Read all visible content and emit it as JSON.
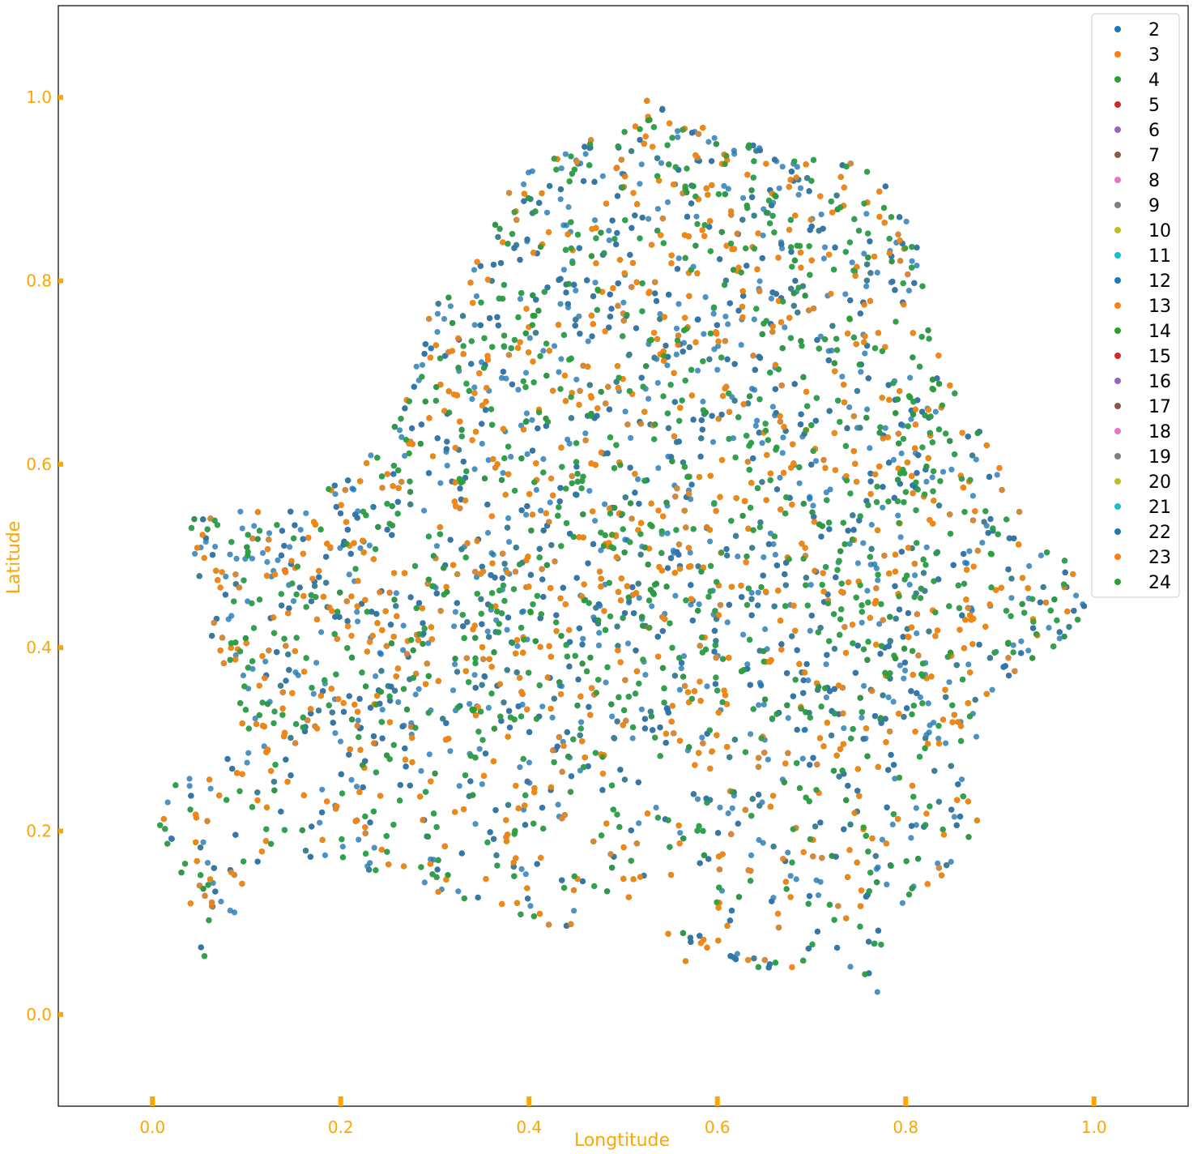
{
  "chart_data": {
    "type": "scatter",
    "title": "",
    "xlabel": "Longtitude",
    "ylabel": "Latitude",
    "xlim": [
      -0.1,
      1.1
    ],
    "ylim": [
      -0.1,
      1.1
    ],
    "xticks": [
      0.0,
      0.2,
      0.4,
      0.6,
      0.8,
      1.0
    ],
    "xtick_labels": [
      "0.0",
      "0.2",
      "0.4",
      "0.6",
      "0.8",
      "1.0"
    ],
    "yticks": [
      0.0,
      0.2,
      0.4,
      0.6,
      0.8,
      1.0
    ],
    "ytick_labels": [
      "0.0",
      "0.2",
      "0.4",
      "0.6",
      "0.8",
      "1.0"
    ],
    "grid": false,
    "legend_position": "top-right",
    "axis_color": "#ffa500",
    "series": [
      {
        "name": "2",
        "color": "#1f77b4"
      },
      {
        "name": "3",
        "color": "#ff7f0e"
      },
      {
        "name": "4",
        "color": "#2ca02c"
      },
      {
        "name": "5",
        "color": "#d62728"
      },
      {
        "name": "6",
        "color": "#9467bd"
      },
      {
        "name": "7",
        "color": "#8c564b"
      },
      {
        "name": "8",
        "color": "#e377c2"
      },
      {
        "name": "9",
        "color": "#7f7f7f"
      },
      {
        "name": "10",
        "color": "#bcbd22"
      },
      {
        "name": "11",
        "color": "#17becf"
      },
      {
        "name": "12",
        "color": "#1f77b4"
      },
      {
        "name": "13",
        "color": "#ff7f0e"
      },
      {
        "name": "14",
        "color": "#2ca02c"
      },
      {
        "name": "15",
        "color": "#d62728"
      },
      {
        "name": "16",
        "color": "#9467bd"
      },
      {
        "name": "17",
        "color": "#8c564b"
      },
      {
        "name": "18",
        "color": "#e377c2"
      },
      {
        "name": "19",
        "color": "#7f7f7f"
      },
      {
        "name": "20",
        "color": "#bcbd22"
      },
      {
        "name": "21",
        "color": "#17becf"
      },
      {
        "name": "22",
        "color": "#1f77b4"
      },
      {
        "name": "23",
        "color": "#ff7f0e"
      },
      {
        "name": "24",
        "color": "#2ca02c"
      }
    ],
    "region_outline": [
      [
        0.0,
        0.2
      ],
      [
        0.02,
        0.25
      ],
      [
        0.06,
        0.27
      ],
      [
        0.1,
        0.3
      ],
      [
        0.08,
        0.36
      ],
      [
        0.05,
        0.45
      ],
      [
        0.04,
        0.54
      ],
      [
        0.1,
        0.55
      ],
      [
        0.17,
        0.55
      ],
      [
        0.2,
        0.6
      ],
      [
        0.25,
        0.63
      ],
      [
        0.27,
        0.67
      ],
      [
        0.28,
        0.75
      ],
      [
        0.32,
        0.8
      ],
      [
        0.36,
        0.84
      ],
      [
        0.37,
        0.9
      ],
      [
        0.41,
        0.93
      ],
      [
        0.46,
        0.95
      ],
      [
        0.52,
        1.0
      ],
      [
        0.56,
        0.98
      ],
      [
        0.63,
        0.96
      ],
      [
        0.67,
        0.94
      ],
      [
        0.72,
        0.94
      ],
      [
        0.77,
        0.92
      ],
      [
        0.81,
        0.86
      ],
      [
        0.82,
        0.78
      ],
      [
        0.84,
        0.7
      ],
      [
        0.9,
        0.6
      ],
      [
        0.94,
        0.51
      ],
      [
        0.98,
        0.49
      ],
      [
        1.0,
        0.44
      ],
      [
        0.96,
        0.4
      ],
      [
        0.93,
        0.37
      ],
      [
        0.89,
        0.35
      ],
      [
        0.87,
        0.28
      ],
      [
        0.88,
        0.2
      ],
      [
        0.84,
        0.15
      ],
      [
        0.78,
        0.1
      ],
      [
        0.77,
        0.0
      ],
      [
        0.73,
        0.07
      ],
      [
        0.65,
        0.04
      ],
      [
        0.57,
        0.05
      ],
      [
        0.52,
        0.12
      ],
      [
        0.44,
        0.09
      ],
      [
        0.37,
        0.1
      ],
      [
        0.28,
        0.14
      ],
      [
        0.2,
        0.16
      ],
      [
        0.14,
        0.18
      ],
      [
        0.1,
        0.12
      ],
      [
        0.08,
        0.06
      ],
      [
        0.05,
        0.04
      ],
      [
        0.04,
        0.1
      ],
      [
        0.02,
        0.18
      ]
    ],
    "point_count_per_series": 900
  }
}
